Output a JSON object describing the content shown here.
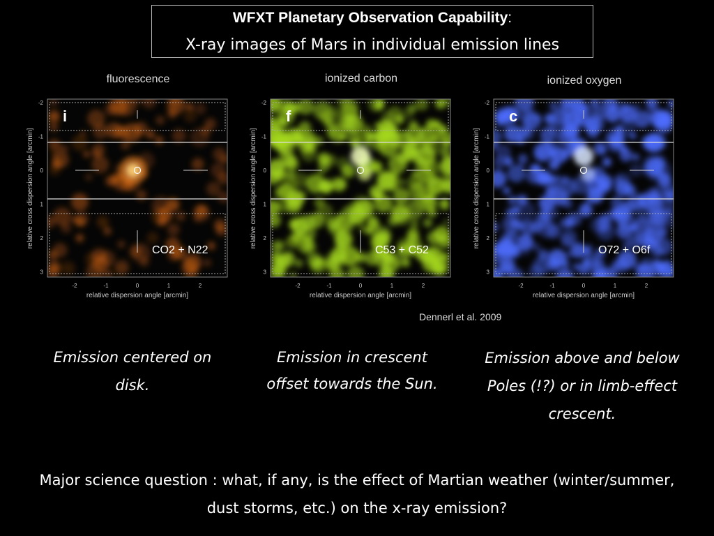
{
  "title": {
    "main": "WFXT Planetary Observation Capability",
    "colon": ":",
    "subtitle": "X-ray images of Mars in individual emission lines"
  },
  "panels": [
    {
      "heading": "fluorescence",
      "letter": "i",
      "lines": "CO2 + N22",
      "x_label": "relative dispersion angle  [arcmin]",
      "y_label": "relative cross dispersion angle  [arcmin]",
      "x_ticks": [
        "-2",
        "-1",
        "0",
        "1",
        "2"
      ],
      "y_ticks": [
        "-2",
        "-1",
        "0",
        "1",
        "2",
        "3"
      ],
      "color": "#ff7a1a"
    },
    {
      "heading": "ionized carbon",
      "letter": "f",
      "lines": "C53 + C52",
      "x_label": "relative dispersion angle  [arcmin]",
      "y_label": "relative cross dispersion angle  [arcmin]",
      "x_ticks": [
        "-2",
        "-1",
        "0",
        "1",
        "2"
      ],
      "y_ticks": [
        "-2",
        "-1",
        "0",
        "1",
        "2",
        "3"
      ],
      "color": "#a6d91e"
    },
    {
      "heading": "ionized oxygen",
      "letter": "c",
      "lines": "O72 + O6f",
      "x_label": "relative dispersion angle  [arcmin]",
      "y_label": "relative cross dispersion angle  [arcmin]",
      "x_ticks": [
        "-2",
        "-1",
        "0",
        "1",
        "2"
      ],
      "y_ticks": [
        "-2",
        "-1",
        "0",
        "1",
        "2",
        "3"
      ],
      "color": "#4d6dff"
    }
  ],
  "credit": "Dennerl et al. 2009",
  "captions": [
    "Emission centered on disk.",
    "Emission in crescent offset towards the Sun.",
    "Emission above and below Poles (!?) or in limb-effect crescent."
  ],
  "question": "Major science question : what, if any, is the effect of Martian weather (winter/summer, dust storms, etc.) on the x-ray emission?"
}
